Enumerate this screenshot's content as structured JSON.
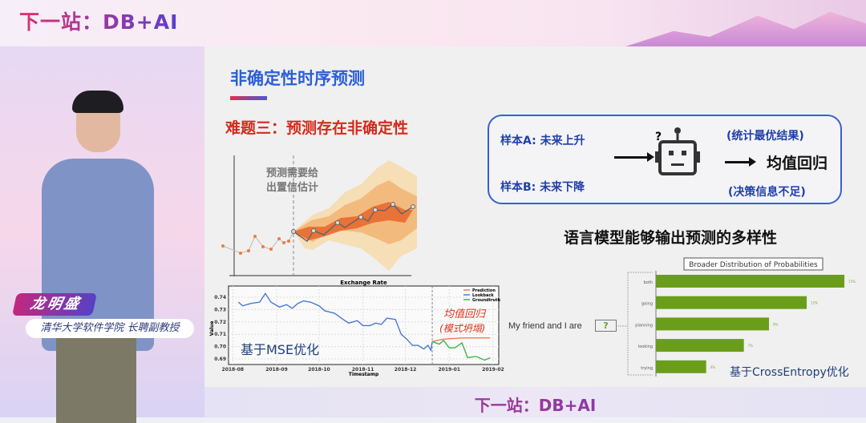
{
  "banner": {
    "title": "下一站：DB+AI"
  },
  "footer": {
    "title": "下一站：DB+AI"
  },
  "speaker": {
    "name": "龙明盛",
    "role": "清华大学软件学院 长聘副教授"
  },
  "slide": {
    "title": "非确定性时序预测",
    "subtitle": "难题三：预测存在非确定性",
    "fan_note_line1": "预测需要给",
    "fan_note_line2": "出置信估计",
    "box": {
      "sample_a": "样本A: 未来上升",
      "sample_b": "样本B: 未来下降",
      "top_note": "(统计最优结果)",
      "result": "均值回归",
      "bottom_note": "(决策信息不足)",
      "question": "?"
    },
    "heading2": "语言模型能够输出预测的多样性",
    "mse_label": "基于MSE优化",
    "mean_reversion_line1": "均值回归",
    "mean_reversion_line2": "(模式坍塌)",
    "ce_label": "基于CrossEntropy优化",
    "prompt_text": "My friend and I are",
    "prompt_blank": "?"
  },
  "chart_data": [
    {
      "type": "line",
      "title": "Exchange Rate",
      "xlabel": "Timestamp",
      "ylabel": "Value",
      "yticks": [
        "0.69",
        "0.70",
        "0.71",
        "0.72",
        "0.73",
        "0.74"
      ],
      "xticks": [
        "2018-08",
        "2018-09",
        "2018-10",
        "2018-11",
        "2018-12",
        "2019-01",
        "2019-02"
      ],
      "legend_position": "top-right",
      "grid": true,
      "forecast_start": "2018-12-20",
      "series": [
        {
          "name": "Prediction",
          "color": "#f07a55",
          "x": [
            "2018-12-20",
            "2018-12-28",
            "2019-01-10",
            "2019-01-30"
          ],
          "y": [
            0.704,
            0.706,
            0.707,
            0.707
          ]
        },
        {
          "name": "Lookback",
          "color": "#4a78d8",
          "x": [
            "2018-08-05",
            "2018-08-08",
            "2018-08-14",
            "2018-08-20",
            "2018-08-24",
            "2018-08-28",
            "2018-09-03",
            "2018-09-08",
            "2018-09-12",
            "2018-09-16",
            "2018-09-20",
            "2018-09-25",
            "2018-10-01",
            "2018-10-05",
            "2018-10-12",
            "2018-10-18",
            "2018-10-22",
            "2018-10-28",
            "2018-11-01",
            "2018-11-06",
            "2018-11-10",
            "2018-11-14",
            "2018-11-18",
            "2018-11-24",
            "2018-11-28",
            "2018-12-02",
            "2018-12-06",
            "2018-12-10",
            "2018-12-14",
            "2018-12-17",
            "2018-12-19",
            "2018-12-20"
          ],
          "y": [
            0.736,
            0.733,
            0.735,
            0.736,
            0.743,
            0.736,
            0.732,
            0.734,
            0.731,
            0.735,
            0.737,
            0.736,
            0.733,
            0.729,
            0.727,
            0.722,
            0.719,
            0.721,
            0.717,
            0.717,
            0.719,
            0.718,
            0.723,
            0.722,
            0.71,
            0.706,
            0.701,
            0.701,
            0.698,
            0.701,
            0.697,
            0.704
          ]
        },
        {
          "name": "Groundtruth",
          "color": "#3cb84a",
          "x": [
            "2018-12-20",
            "2018-12-25",
            "2018-12-28",
            "2019-01-01",
            "2019-01-05",
            "2019-01-10",
            "2019-01-14",
            "2019-01-20",
            "2019-01-26",
            "2019-01-30"
          ],
          "y": [
            0.704,
            0.702,
            0.705,
            0.699,
            0.699,
            0.703,
            0.691,
            0.692,
            0.689,
            0.691
          ]
        }
      ]
    },
    {
      "type": "bar",
      "orientation": "horizontal",
      "title": "Broader Distribution of Probabilities",
      "categories": [
        "both",
        "going",
        "planning",
        "looking",
        "trying"
      ],
      "values": [
        15,
        12,
        9,
        7,
        4
      ],
      "labels": [
        "15%",
        "12%",
        "9%",
        "7%",
        "4%"
      ],
      "color": "#6a9e1a"
    }
  ]
}
